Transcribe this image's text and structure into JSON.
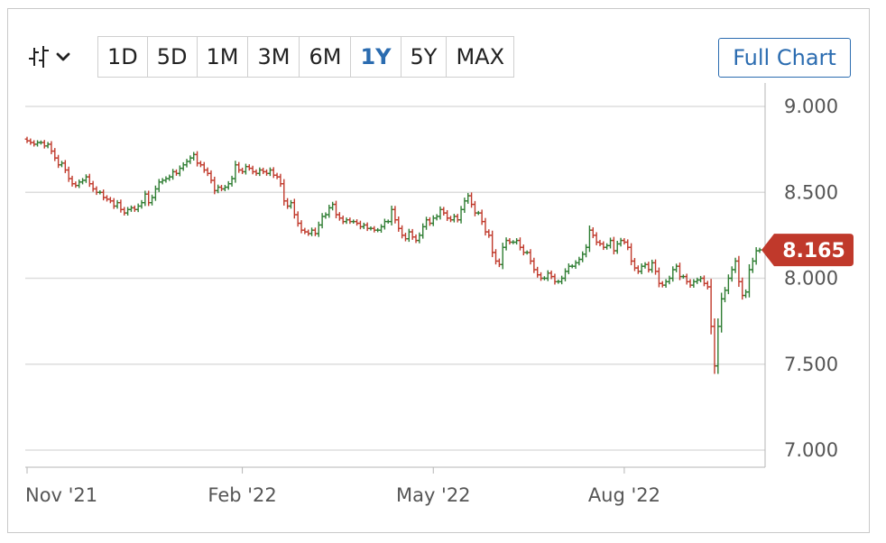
{
  "toolbar": {
    "chart_type_icon": "ohlc-bars-icon",
    "chart_type_dropdown_icon": "chevron-down-icon",
    "ranges": [
      "1D",
      "5D",
      "1M",
      "3M",
      "6M",
      "1Y",
      "5Y",
      "MAX"
    ],
    "active_range": "1Y",
    "full_chart_label": "Full Chart"
  },
  "colors": {
    "up": "#2e7d32",
    "down": "#c0392b",
    "grid": "#dddddd",
    "axis": "#b5b5b5",
    "price_tag": "#c0392b",
    "accent": "#2b6cb0"
  },
  "chart_data": {
    "type": "ohlc",
    "ylim": [
      7.0,
      9.0
    ],
    "yticks": [
      "9.000",
      "8.500",
      "8.000",
      "7.500",
      "7.000"
    ],
    "xticks": [
      {
        "label": "Nov '21",
        "index": 0
      },
      {
        "label": "Feb '22",
        "index": 62
      },
      {
        "label": "May '22",
        "index": 117
      },
      {
        "label": "Aug '22",
        "index": 172
      }
    ],
    "last_price": "8.165",
    "grid": "horizontal",
    "closes": [
      8.8,
      8.79,
      8.78,
      8.79,
      8.79,
      8.77,
      8.78,
      8.74,
      8.7,
      8.66,
      8.67,
      8.63,
      8.58,
      8.55,
      8.54,
      8.56,
      8.57,
      8.59,
      8.55,
      8.52,
      8.5,
      8.5,
      8.47,
      8.46,
      8.45,
      8.42,
      8.44,
      8.4,
      8.38,
      8.4,
      8.41,
      8.4,
      8.42,
      8.44,
      8.49,
      8.44,
      8.47,
      8.52,
      8.56,
      8.57,
      8.58,
      8.59,
      8.62,
      8.61,
      8.64,
      8.66,
      8.68,
      8.7,
      8.72,
      8.67,
      8.66,
      8.63,
      8.61,
      8.57,
      8.51,
      8.53,
      8.52,
      8.53,
      8.55,
      8.58,
      8.66,
      8.63,
      8.62,
      8.65,
      8.64,
      8.62,
      8.61,
      8.63,
      8.62,
      8.61,
      8.63,
      8.6,
      8.59,
      8.55,
      8.45,
      8.42,
      8.44,
      8.37,
      8.32,
      8.28,
      8.27,
      8.26,
      8.28,
      8.26,
      8.31,
      8.36,
      8.37,
      8.41,
      8.43,
      8.37,
      8.35,
      8.33,
      8.34,
      8.33,
      8.33,
      8.32,
      8.3,
      8.31,
      8.29,
      8.29,
      8.28,
      8.28,
      8.3,
      8.33,
      8.33,
      8.4,
      8.34,
      8.29,
      8.25,
      8.23,
      8.27,
      8.24,
      8.22,
      8.25,
      8.3,
      8.34,
      8.32,
      8.35,
      8.36,
      8.4,
      8.38,
      8.35,
      8.34,
      8.36,
      8.34,
      8.4,
      8.45,
      8.48,
      8.43,
      8.38,
      8.38,
      8.33,
      8.27,
      8.25,
      8.15,
      8.1,
      8.08,
      8.18,
      8.22,
      8.21,
      8.21,
      8.22,
      8.18,
      8.15,
      8.15,
      8.1,
      8.05,
      8.02,
      8.0,
      8.0,
      8.03,
      8.01,
      7.98,
      7.98,
      8.0,
      8.04,
      8.07,
      8.07,
      8.09,
      8.11,
      8.14,
      8.18,
      8.28,
      8.25,
      8.21,
      8.2,
      8.18,
      8.19,
      8.22,
      8.16,
      8.2,
      8.22,
      8.21,
      8.18,
      8.1,
      8.06,
      8.04,
      8.07,
      8.08,
      8.05,
      8.09,
      8.04,
      7.97,
      7.96,
      7.98,
      8.0,
      8.05,
      8.07,
      8.01,
      8.01,
      7.98,
      7.96,
      7.98,
      7.99,
      8.0,
      7.97,
      7.95,
      7.72,
      7.49,
      7.72,
      7.88,
      7.93,
      8.0,
      8.05,
      8.1,
      7.98,
      7.9,
      7.92,
      8.05,
      8.1,
      8.16,
      8.165
    ]
  }
}
